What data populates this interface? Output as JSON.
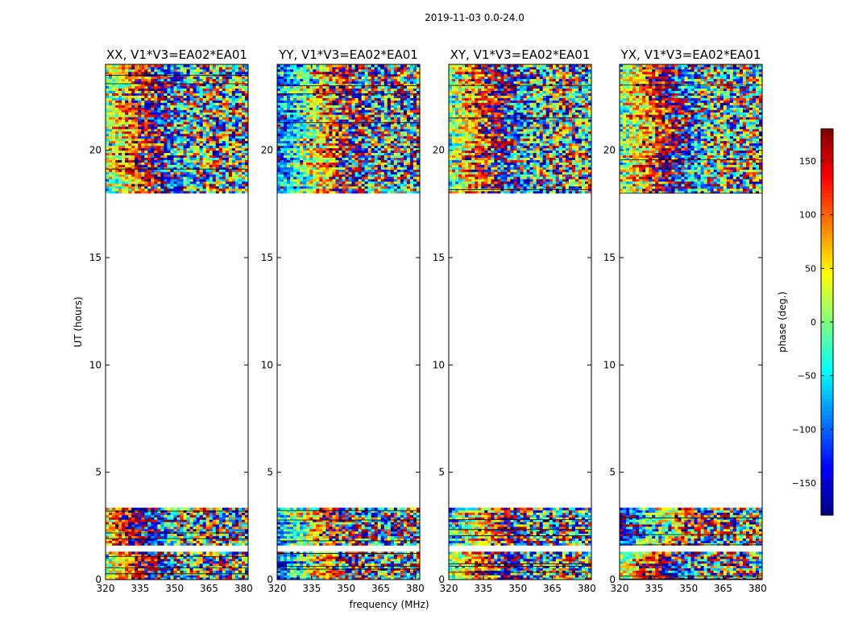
{
  "figure": {
    "suptitle": "2019-11-03 0.0-24.0",
    "xlabel": "frequency (MHz)",
    "ylabel": "UT (hours)"
  },
  "colorbar": {
    "label": "phase (deg.)",
    "range": [
      -180,
      180
    ],
    "ticks": [
      -150,
      -100,
      -50,
      0,
      50,
      100,
      150
    ],
    "tick_labels": [
      "−150",
      "−100",
      "−50",
      "0",
      "50",
      "100",
      "150"
    ],
    "colormap": "jet"
  },
  "chart_data": [
    {
      "type": "heatmap",
      "title": "XX, V1*V3=EA02*EA01",
      "polarization": "XX",
      "x_range_mhz": [
        320,
        382
      ],
      "y_range_hours": [
        0,
        24
      ],
      "x_ticks": [
        320,
        335,
        350,
        365,
        380
      ],
      "y_ticks": [
        0,
        5,
        10,
        15,
        20
      ],
      "data_time_ranges_hours": [
        [
          0,
          1.3
        ],
        [
          1.6,
          3.35
        ],
        [
          18.0,
          24.0
        ]
      ],
      "blank_time_ranges_hours": [
        [
          1.3,
          1.6
        ],
        [
          3.35,
          18.0
        ]
      ],
      "colormap": "jet",
      "value_range": [
        -180,
        180
      ],
      "band_phase_deg": [
        10,
        60,
        0,
        130
      ]
    },
    {
      "type": "heatmap",
      "title": "YY, V1*V3=EA02*EA01",
      "polarization": "YY",
      "x_range_mhz": [
        320,
        382
      ],
      "y_range_hours": [
        0,
        24
      ],
      "x_ticks": [
        320,
        335,
        350,
        365,
        380
      ],
      "y_ticks": [
        0,
        5,
        10,
        15,
        20
      ],
      "data_time_ranges_hours": [
        [
          0,
          1.3
        ],
        [
          1.6,
          3.35
        ],
        [
          18.0,
          24.0
        ]
      ],
      "blank_time_ranges_hours": [
        [
          1.3,
          1.6
        ],
        [
          3.35,
          18.0
        ]
      ],
      "colormap": "jet",
      "value_range": [
        -180,
        180
      ],
      "band_phase_deg": [
        -120,
        -90,
        -100,
        0
      ]
    },
    {
      "type": "heatmap",
      "title": "XY, V1*V3=EA02*EA01",
      "polarization": "XY",
      "x_range_mhz": [
        320,
        382
      ],
      "y_range_hours": [
        0,
        24
      ],
      "x_ticks": [
        320,
        335,
        350,
        365,
        380
      ],
      "y_ticks": [
        0,
        5,
        10,
        15,
        20
      ],
      "data_time_ranges_hours": [
        [
          0,
          1.3
        ],
        [
          1.6,
          3.35
        ],
        [
          18.0,
          24.0
        ]
      ],
      "blank_time_ranges_hours": [
        [
          1.3,
          1.6
        ],
        [
          3.35,
          18.0
        ]
      ],
      "colormap": "jet",
      "value_range": [
        -180,
        180
      ],
      "band_phase_deg": [
        0,
        -40,
        0,
        0
      ]
    },
    {
      "type": "heatmap",
      "title": "YX, V1*V3=EA02*EA01",
      "polarization": "YX",
      "x_range_mhz": [
        320,
        382
      ],
      "y_range_hours": [
        0,
        24
      ],
      "x_ticks": [
        320,
        335,
        350,
        365,
        380
      ],
      "y_ticks": [
        0,
        5,
        10,
        15,
        20
      ],
      "data_time_ranges_hours": [
        [
          0,
          1.3
        ],
        [
          1.6,
          3.35
        ],
        [
          18.0,
          24.0
        ]
      ],
      "blank_time_ranges_hours": [
        [
          1.3,
          1.6
        ],
        [
          3.35,
          18.0
        ]
      ],
      "colormap": "jet",
      "value_range": [
        -180,
        180
      ],
      "band_phase_deg": [
        0,
        -160,
        0,
        0
      ]
    }
  ]
}
